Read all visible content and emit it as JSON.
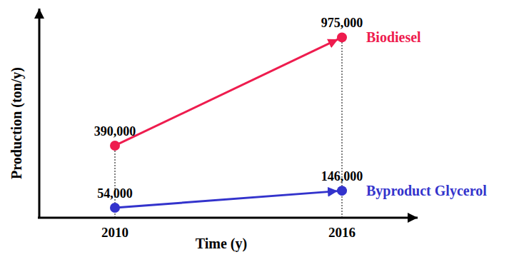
{
  "chart_data": {
    "type": "line",
    "x_label": "Time (y)",
    "y_label": "Production (ton/y)",
    "x": [
      2010,
      2016
    ],
    "xlim": [
      2008,
      2018
    ],
    "xticks": [
      2010,
      2016
    ],
    "ylim": [
      0,
      1100000
    ],
    "yticks": [],
    "tick_labels": "x",
    "grid": true,
    "data_labels": true,
    "series": [
      {
        "name": "Biodiesel",
        "color": "#ee1c4e",
        "marker": "circle",
        "line_style": "arrow",
        "values": [
          390000,
          975000
        ],
        "value_labels": [
          "390,000",
          "975,000"
        ]
      },
      {
        "name": "Byproduct Glycerol",
        "color": "#3333cc",
        "marker": "circle",
        "line_style": "arrow",
        "values": [
          54000,
          146000
        ],
        "value_labels": [
          "54,000",
          "146,000"
        ]
      }
    ]
  }
}
